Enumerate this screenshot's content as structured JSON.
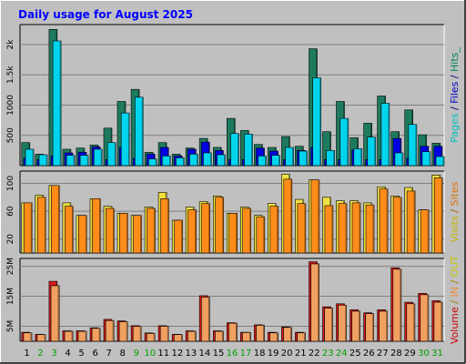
{
  "chart_data": {
    "type": "bar",
    "title": "Daily usage for August 2025",
    "categories": [
      "1",
      "2",
      "3",
      "4",
      "5",
      "6",
      "7",
      "8",
      "9",
      "10",
      "11",
      "12",
      "13",
      "14",
      "15",
      "16",
      "17",
      "18",
      "19",
      "20",
      "21",
      "22",
      "23",
      "24",
      "25",
      "26",
      "27",
      "28",
      "29",
      "30",
      "31"
    ],
    "weekend_days": [
      "2",
      "3",
      "9",
      "10",
      "16",
      "17",
      "23",
      "24",
      "30",
      "31"
    ],
    "panels": [
      {
        "name": "pages-files-hits",
        "y_ticks": [
          "500",
          "1000",
          "1.5k",
          "2k"
        ],
        "ylim": [
          0,
          2300
        ],
        "series": [
          {
            "name": "Hits",
            "color": "#1e7a5e",
            "values": [
              380,
              190,
              2250,
              270,
              290,
              340,
              620,
              1060,
              1260,
              220,
              380,
              190,
              290,
              450,
              300,
              780,
              580,
              350,
              300,
              480,
              320,
              1930,
              560,
              1060,
              460,
              700,
              1150,
              560,
              920,
              510,
              370
            ]
          },
          {
            "name": "Files",
            "color": "#0000e6",
            "values": [
              120,
              100,
              160,
              210,
              220,
              310,
              100,
              300,
              120,
              190,
              300,
              160,
              270,
              390,
              250,
              100,
              100,
              290,
              240,
              100,
              250,
              300,
              100,
              100,
              260,
              100,
              100,
              450,
              120,
              320,
              320
            ]
          },
          {
            "name": "Pages",
            "color": "#00d4ee",
            "values": [
              270,
              180,
              2060,
              170,
              170,
              270,
              380,
              870,
              1130,
              110,
              160,
              130,
              190,
              210,
              180,
              530,
              520,
              160,
              170,
              300,
              240,
              1450,
              250,
              780,
              280,
              470,
              1030,
              210,
              680,
              230,
              150
            ]
          }
        ],
        "side_label": [
          {
            "text": "Pages",
            "color": "#00c0c0"
          },
          {
            "text": " / ",
            "color": "#000080"
          },
          {
            "text": "Files",
            "color": "#0000cc"
          },
          {
            "text": " / ",
            "color": "#000080"
          },
          {
            "text": "Hits_",
            "color": "#008060"
          }
        ]
      },
      {
        "name": "visits-sites",
        "y_ticks": [
          "20",
          "60",
          "100"
        ],
        "ylim": [
          0,
          115
        ],
        "series": [
          {
            "name": "Visits",
            "color": "#f0e040",
            "values": [
              72,
              83,
              97,
              72,
              54,
              78,
              67,
              57,
              54,
              66,
              87,
              47,
              66,
              74,
              82,
              57,
              66,
              54,
              71,
              113,
              77,
              105,
              80,
              75,
              75,
              72,
              95,
              82,
              94,
              62,
              112
            ]
          },
          {
            "name": "Sites",
            "color": "#ff8c1a",
            "values": [
              72,
              80,
              97,
              67,
              54,
              78,
              64,
              57,
              54,
              64,
              78,
              47,
              62,
              71,
              80,
              57,
              64,
              52,
              67,
              106,
              71,
              105,
              68,
              71,
              72,
              69,
              92,
              80,
              89,
              62,
              108
            ]
          }
        ],
        "side_label": [
          {
            "text": "Visits",
            "color": "#c8b400"
          },
          {
            "text": " / ",
            "color": "#a06000"
          },
          {
            "text": "Sites",
            "color": "#e07000"
          }
        ]
      },
      {
        "name": "volume-in-out",
        "y_ticks": [
          "5M",
          "15M",
          "25M"
        ],
        "ylim": [
          0,
          27000000
        ],
        "series": [
          {
            "name": "Volume",
            "color": "#dd1a1a",
            "values": [
              3000000,
              2300000,
              20000000,
              3500000,
              3500000,
              4500000,
              7300000,
              6800000,
              5200000,
              2800000,
              5200000,
              2300000,
              3500000,
              15200000,
              3500000,
              6200000,
              3000000,
              5500000,
              3000000,
              4800000,
              3000000,
              26500000,
              11500000,
              12500000,
              10500000,
              9500000,
              10500000,
              24500000,
              13000000,
              16000000,
              13500000
            ]
          },
          {
            "name": "IN",
            "color": "#f0a060",
            "values": [
              2800000,
              2200000,
              18500000,
              3300000,
              3300000,
              4300000,
              6900000,
              6500000,
              4900000,
              2600000,
              5000000,
              2200000,
              3300000,
              14700000,
              3300000,
              6000000,
              2900000,
              5300000,
              2800000,
              4600000,
              2800000,
              25800000,
              11000000,
              12000000,
              10000000,
              9200000,
              10000000,
              24000000,
              12500000,
              15500000,
              13000000
            ]
          },
          {
            "name": "OUT",
            "color": "#f0a060",
            "values": [
              2800000,
              2200000,
              18500000,
              3300000,
              3300000,
              4300000,
              6900000,
              6500000,
              4900000,
              2600000,
              5000000,
              2200000,
              3300000,
              14700000,
              3300000,
              6000000,
              2900000,
              5300000,
              2800000,
              4600000,
              2800000,
              25800000,
              11000000,
              12000000,
              10000000,
              9200000,
              10000000,
              24000000,
              12500000,
              15500000,
              13000000
            ]
          }
        ],
        "side_label": [
          {
            "text": "Volume",
            "color": "#cc0000"
          },
          {
            "text": " / ",
            "color": "#a08000"
          },
          {
            "text": "IN",
            "color": "#f09040"
          },
          {
            "text": " / ",
            "color": "#a08000"
          },
          {
            "text": "OUT",
            "color": "#c8c800"
          }
        ]
      }
    ],
    "colors": {
      "background": "#c0c0c0",
      "title": "#0000ff",
      "weekday_label": "#000000",
      "weekend_label": "#00a000",
      "grid": "#808080"
    }
  }
}
